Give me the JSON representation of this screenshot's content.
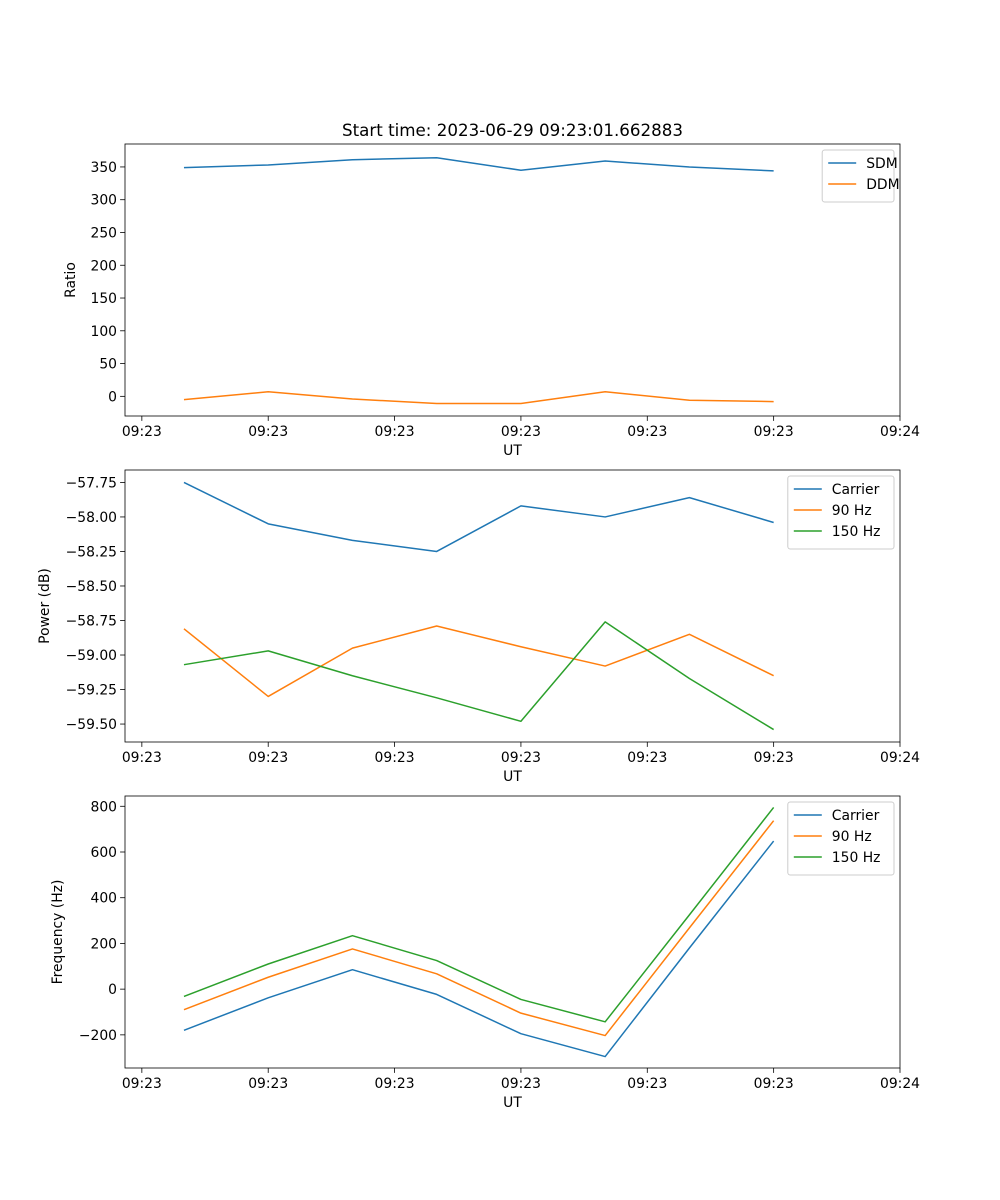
{
  "figure": {
    "title": "Start time: 2023-06-29 09:23:01.662883"
  },
  "chart_data": [
    {
      "type": "line",
      "title": "Start time: 2023-06-29 09:23:01.662883",
      "xlabel": "UT",
      "ylabel": "Ratio",
      "x": [
        0.5,
        1.5,
        2.5,
        3.5,
        4.5,
        5.5,
        6.5,
        7.5
      ],
      "xlim": [
        -0.2,
        9.0
      ],
      "xticks": [
        0,
        1.5,
        3,
        4.5,
        6,
        7.5,
        9
      ],
      "xtick_labels": [
        "09:23",
        "09:23",
        "09:23",
        "09:23",
        "09:23",
        "09:23",
        "09:24"
      ],
      "ylim": [
        -30,
        385
      ],
      "yticks": [
        0,
        50,
        100,
        150,
        200,
        250,
        300,
        350
      ],
      "ytick_labels": [
        "0",
        "50",
        "100",
        "150",
        "200",
        "250",
        "300",
        "350"
      ],
      "grid": false,
      "legend_position": "top-right",
      "series": [
        {
          "name": "SDM",
          "color": "#1f77b4",
          "values": [
            349,
            353,
            361,
            364,
            345,
            359,
            350,
            344
          ]
        },
        {
          "name": "DDM",
          "color": "#ff7f0e",
          "values": [
            -5,
            7,
            -4,
            -11,
            -11,
            7,
            -6,
            -8
          ]
        }
      ]
    },
    {
      "type": "line",
      "xlabel": "UT",
      "ylabel": "Power (dB)",
      "x": [
        0.5,
        1.5,
        2.5,
        3.5,
        4.5,
        5.5,
        6.5,
        7.5
      ],
      "xlim": [
        -0.2,
        9.0
      ],
      "xticks": [
        0,
        1.5,
        3,
        4.5,
        6,
        7.5,
        9
      ],
      "xtick_labels": [
        "09:23",
        "09:23",
        "09:23",
        "09:23",
        "09:23",
        "09:23",
        "09:24"
      ],
      "ylim": [
        -59.63,
        -57.66
      ],
      "yticks": [
        -59.5,
        -59.25,
        -59.0,
        -58.75,
        -58.5,
        -58.25,
        -58.0,
        -57.75
      ],
      "ytick_labels": [
        "−59.50",
        "−59.25",
        "−59.00",
        "−58.75",
        "−58.50",
        "−58.25",
        "−58.00",
        "−57.75"
      ],
      "grid": false,
      "legend_position": "top-right",
      "series": [
        {
          "name": "Carrier",
          "color": "#1f77b4",
          "values": [
            -57.75,
            -58.05,
            -58.17,
            -58.25,
            -57.92,
            -58.0,
            -57.86,
            -58.04
          ]
        },
        {
          "name": "90 Hz",
          "color": "#ff7f0e",
          "values": [
            -58.81,
            -59.3,
            -58.95,
            -58.79,
            -58.94,
            -59.08,
            -58.85,
            -59.15
          ]
        },
        {
          "name": "150 Hz",
          "color": "#2ca02c",
          "values": [
            -59.07,
            -58.97,
            -59.15,
            -59.31,
            -59.48,
            -58.76,
            -59.17,
            -59.54
          ]
        }
      ]
    },
    {
      "type": "line",
      "xlabel": "UT",
      "ylabel": "Frequency (Hz)",
      "x": [
        0.5,
        1.5,
        2.5,
        3.5,
        4.5,
        5.5,
        6.5,
        7.5
      ],
      "xlim": [
        -0.2,
        9.0
      ],
      "xticks": [
        0,
        1.5,
        3,
        4.5,
        6,
        7.5,
        9
      ],
      "xtick_labels": [
        "09:23",
        "09:23",
        "09:23",
        "09:23",
        "09:23",
        "09:23",
        "09:24"
      ],
      "ylim": [
        -345,
        845
      ],
      "yticks": [
        -200,
        0,
        200,
        400,
        600,
        800
      ],
      "ytick_labels": [
        "−200",
        "0",
        "200",
        "400",
        "600",
        "800"
      ],
      "grid": false,
      "legend_position": "top-right",
      "series": [
        {
          "name": "Carrier",
          "color": "#1f77b4",
          "values": [
            -180,
            -38,
            85,
            -23,
            -195,
            -295,
            180,
            648
          ]
        },
        {
          "name": "90 Hz",
          "color": "#ff7f0e",
          "values": [
            -90,
            52,
            176,
            67,
            -105,
            -203,
            268,
            737
          ]
        },
        {
          "name": "150 Hz",
          "color": "#2ca02c",
          "values": [
            -32,
            110,
            234,
            125,
            -45,
            -143,
            325,
            795
          ]
        }
      ]
    }
  ]
}
